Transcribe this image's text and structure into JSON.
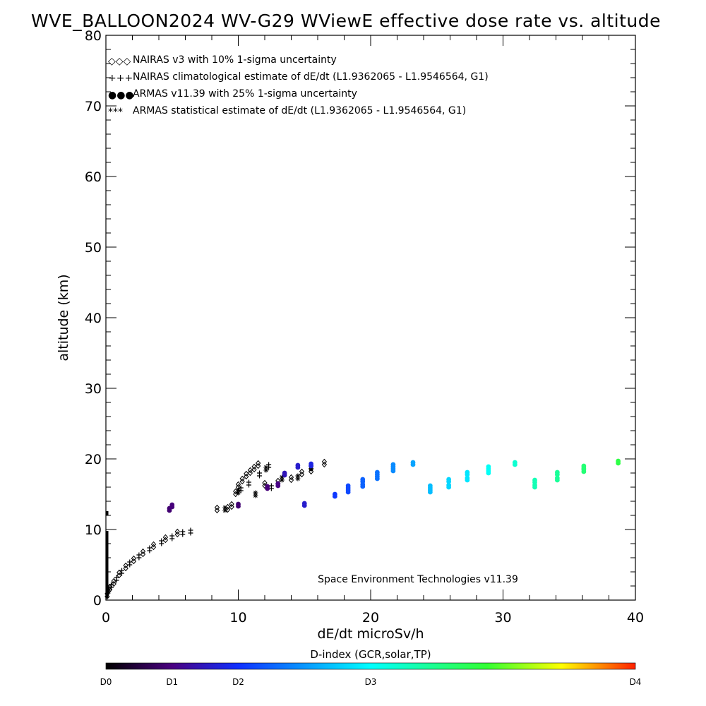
{
  "chart_data": {
    "type": "scatter",
    "title": "WVE_BALLOON2024 WV-G29 WViewE effective dose rate vs. altitude",
    "xlabel": "dE/dt microSv/h",
    "ylabel": "altitude (km)",
    "xlim": [
      0,
      40
    ],
    "ylim": [
      0,
      80
    ],
    "x_ticks": [
      "0",
      "10",
      "20",
      "30",
      "40"
    ],
    "y_ticks": [
      "0",
      "10",
      "20",
      "30",
      "40",
      "50",
      "60",
      "70",
      "80"
    ],
    "legend_placement": "top-left",
    "legend": [
      {
        "marker": "◇◇◇",
        "text": "NAIRAS v3 with 10% 1-sigma uncertainty"
      },
      {
        "marker": "+++",
        "text": "NAIRAS climatological estimate of dE/dt (L1.9362065 - L1.9546564, G1)"
      },
      {
        "marker": "●●●",
        "text": "ARMAS v11.39 with 25% 1-sigma uncertainty"
      },
      {
        "marker": "***",
        "text": "ARMAS statistical estimate of dE/dt (L1.9362065 - L1.9546564, G1)"
      }
    ],
    "annotation": "Space Environment Technologies v11.39",
    "colorbar": {
      "title": "D-index (GCR,solar,TP)",
      "ticks": [
        {
          "label": "D0",
          "pos": 0.0
        },
        {
          "label": "D1",
          "pos": 0.125
        },
        {
          "label": "D2",
          "pos": 0.25
        },
        {
          "label": "D3",
          "pos": 0.5
        },
        {
          "label": "D4",
          "pos": 1.0
        }
      ]
    },
    "series": [
      {
        "name": "NAIRAS v3 with 10% 1-sigma uncertainty",
        "marker": "diamond",
        "color": "#000000",
        "points": [
          [
            0.1,
            0.5
          ],
          [
            0.3,
            1.5
          ],
          [
            0.6,
            2.3
          ],
          [
            1.0,
            3.5
          ],
          [
            1.5,
            4.5
          ],
          [
            2.1,
            5.5
          ],
          [
            2.8,
            6.5
          ],
          [
            3.6,
            7.5
          ],
          [
            4.5,
            8.5
          ],
          [
            5.4,
            9.3
          ],
          [
            8.4,
            12.7
          ],
          [
            9.2,
            12.8
          ],
          [
            9.5,
            13.2
          ],
          [
            9.8,
            15.0
          ],
          [
            10.0,
            16.0
          ],
          [
            10.3,
            16.8
          ],
          [
            10.6,
            17.5
          ],
          [
            10.9,
            18.0
          ],
          [
            11.2,
            18.5
          ],
          [
            11.5,
            19.0
          ],
          [
            12.0,
            16.2
          ],
          [
            13.0,
            16.5
          ],
          [
            14.0,
            17.0
          ],
          [
            14.8,
            17.8
          ],
          [
            15.5,
            18.2
          ],
          [
            16.5,
            19.2
          ]
        ]
      },
      {
        "name": "NAIRAS climatological estimate of dE/dt (L1.9362065 - L1.9546564, G1)",
        "marker": "plus",
        "color": "#000000",
        "points": [
          [
            0.4,
            1.8
          ],
          [
            0.8,
            2.8
          ],
          [
            1.2,
            3.8
          ],
          [
            1.8,
            5.0
          ],
          [
            2.5,
            6.0
          ],
          [
            3.3,
            7.0
          ],
          [
            4.2,
            8.0
          ],
          [
            5.0,
            8.7
          ],
          [
            5.8,
            9.3
          ],
          [
            6.4,
            9.5
          ],
          [
            10.2,
            15.5
          ],
          [
            10.8,
            16.3
          ],
          [
            11.6,
            17.6
          ],
          [
            12.3,
            18.8
          ],
          [
            12.5,
            15.8
          ]
        ]
      },
      {
        "name": "ARMAS statistical estimate of dE/dt (L1.9362065 - L1.9546564, G1)",
        "marker": "asterisk",
        "color": "#000000",
        "points": [
          [
            0.2,
            1.2
          ],
          [
            9.0,
            12.7
          ],
          [
            10.0,
            15.2
          ],
          [
            11.3,
            14.8
          ],
          [
            12.1,
            18.4
          ],
          [
            13.3,
            17.0
          ],
          [
            14.5,
            17.2
          ],
          [
            15.5,
            18.6
          ]
        ]
      },
      {
        "name": "ARMAS v11.39 with 25% 1-sigma uncertainty",
        "marker": "dot",
        "color_by": "D-index",
        "points": [
          [
            4.8,
            12.7,
            0.11
          ],
          [
            5.0,
            13.2,
            0.12
          ],
          [
            10.0,
            13.3,
            0.11
          ],
          [
            12.2,
            15.8,
            0.12
          ],
          [
            13.0,
            16.2,
            0.13
          ],
          [
            13.5,
            17.7,
            0.18
          ],
          [
            14.5,
            18.8,
            0.2
          ],
          [
            15.0,
            13.4,
            0.2
          ],
          [
            15.5,
            19.0,
            0.22
          ],
          [
            17.3,
            14.7,
            0.26
          ],
          [
            18.3,
            15.3,
            0.28
          ],
          [
            18.3,
            15.9,
            0.28
          ],
          [
            19.4,
            16.1,
            0.31
          ],
          [
            19.4,
            16.8,
            0.31
          ],
          [
            20.5,
            17.2,
            0.33
          ],
          [
            20.5,
            17.8,
            0.33
          ],
          [
            21.7,
            18.3,
            0.36
          ],
          [
            21.7,
            18.9,
            0.36
          ],
          [
            23.2,
            19.2,
            0.39
          ],
          [
            24.5,
            15.3,
            0.42
          ],
          [
            24.5,
            15.9,
            0.42
          ],
          [
            25.9,
            16.0,
            0.45
          ],
          [
            25.9,
            16.8,
            0.45
          ],
          [
            27.3,
            17.0,
            0.47
          ],
          [
            27.3,
            17.8,
            0.47
          ],
          [
            28.9,
            18.0,
            0.51
          ],
          [
            28.9,
            18.6,
            0.51
          ],
          [
            30.9,
            19.2,
            0.55
          ],
          [
            32.4,
            16.0,
            0.58
          ],
          [
            32.4,
            16.7,
            0.58
          ],
          [
            34.1,
            17.0,
            0.61
          ],
          [
            34.1,
            17.8,
            0.61
          ],
          [
            36.1,
            18.2,
            0.65
          ],
          [
            36.1,
            18.7,
            0.65
          ],
          [
            38.7,
            19.4,
            0.7
          ]
        ]
      }
    ]
  }
}
